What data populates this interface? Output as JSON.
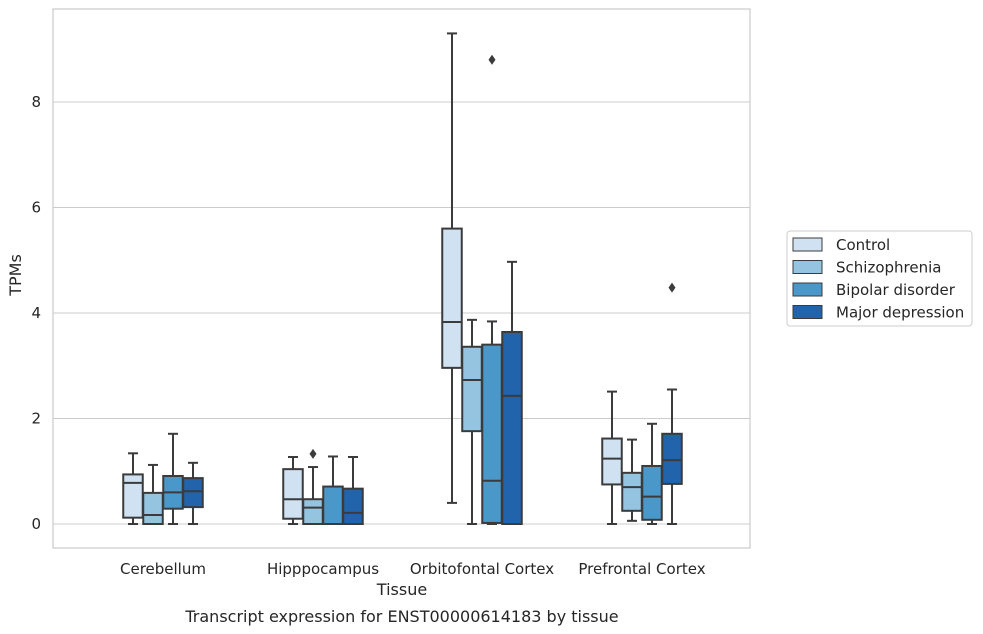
{
  "chart_data": {
    "type": "box",
    "title": "Transcript expression for ENST00000614183 by tissue",
    "xlabel": "Tissue",
    "ylabel": "TPMs",
    "categories": [
      "Cerebellum",
      "Hipppocampus",
      "Orbitofontal Cortex",
      "Prefrontal Cortex"
    ],
    "y_ticks": [
      0,
      2,
      4,
      6,
      8
    ],
    "y_tick_labels": [
      "0",
      "2",
      "4",
      "6",
      "8"
    ],
    "ylim": [
      -0.45,
      9.75
    ],
    "grid": "horizontal",
    "legend_position": "right",
    "series": [
      {
        "name": "Control",
        "color": "#d0e1f2",
        "boxes": [
          {
            "whislo": 0.0,
            "q1": 0.12,
            "med": 0.78,
            "q3": 0.94,
            "whishi": 1.34,
            "fliers": []
          },
          {
            "whislo": 0.0,
            "q1": 0.1,
            "med": 0.47,
            "q3": 1.04,
            "whishi": 1.27,
            "fliers": []
          },
          {
            "whislo": 0.4,
            "q1": 2.96,
            "med": 3.83,
            "q3": 5.6,
            "whishi": 9.3,
            "fliers": []
          },
          {
            "whislo": 0.0,
            "q1": 0.75,
            "med": 1.24,
            "q3": 1.62,
            "whishi": 2.51,
            "fliers": []
          }
        ]
      },
      {
        "name": "Schizophrenia",
        "color": "#94c4df",
        "boxes": [
          {
            "whislo": 0.0,
            "q1": 0.0,
            "med": 0.17,
            "q3": 0.59,
            "whishi": 1.12,
            "fliers": []
          },
          {
            "whislo": 0.0,
            "q1": 0.0,
            "med": 0.31,
            "q3": 0.47,
            "whishi": 1.08,
            "fliers": [
              1.33
            ]
          },
          {
            "whislo": 0.0,
            "q1": 1.76,
            "med": 2.73,
            "q3": 3.36,
            "whishi": 3.87,
            "fliers": []
          },
          {
            "whislo": 0.06,
            "q1": 0.25,
            "med": 0.7,
            "q3": 0.97,
            "whishi": 1.6,
            "fliers": []
          }
        ]
      },
      {
        "name": "Bipolar disorder",
        "color": "#4a98c9",
        "boxes": [
          {
            "whislo": 0.0,
            "q1": 0.29,
            "med": 0.6,
            "q3": 0.91,
            "whishi": 1.71,
            "fliers": []
          },
          {
            "whislo": 0.0,
            "q1": 0.0,
            "med": 0.0,
            "q3": 0.71,
            "whishi": 1.28,
            "fliers": []
          },
          {
            "whislo": 0.0,
            "q1": 0.02,
            "med": 0.82,
            "q3": 3.4,
            "whishi": 3.84,
            "fliers": [
              8.8
            ]
          },
          {
            "whislo": 0.0,
            "q1": 0.08,
            "med": 0.52,
            "q3": 1.1,
            "whishi": 1.9,
            "fliers": []
          }
        ]
      },
      {
        "name": "Major depression",
        "color": "#2164ab",
        "boxes": [
          {
            "whislo": 0.0,
            "q1": 0.32,
            "med": 0.62,
            "q3": 0.87,
            "whishi": 1.16,
            "fliers": []
          },
          {
            "whislo": 0.0,
            "q1": 0.0,
            "med": 0.21,
            "q3": 0.67,
            "whishi": 1.27,
            "fliers": []
          },
          {
            "whislo": 0.0,
            "q1": 0.0,
            "med": 2.43,
            "q3": 3.64,
            "whishi": 4.97,
            "fliers": []
          },
          {
            "whislo": 0.0,
            "q1": 0.76,
            "med": 1.21,
            "q3": 1.71,
            "whishi": 2.55,
            "fliers": [
              4.48
            ]
          }
        ]
      }
    ]
  },
  "colors": {
    "grid": "#cccccc",
    "spine": "#cccccc",
    "box_edge": "#3b3b3b",
    "text": "#262626"
  }
}
